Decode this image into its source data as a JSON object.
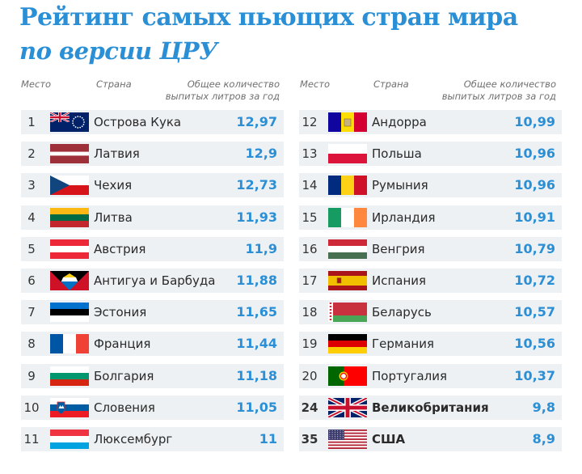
{
  "title": "Рейтинг самых пьющих стран мира",
  "subtitle": "по версии ЦРУ",
  "headers": {
    "rank": "Место",
    "country": "Страна",
    "liters_line1": "Общее количество",
    "liters_line2": "выпитых литров за год"
  },
  "left": [
    {
      "rank": "1",
      "country": "Острова Кука",
      "value": "12,97",
      "flag": "cook-islands"
    },
    {
      "rank": "2",
      "country": "Латвия",
      "value": "12,9",
      "flag": "latvia"
    },
    {
      "rank": "3",
      "country": "Чехия",
      "value": "12,73",
      "flag": "czechia"
    },
    {
      "rank": "4",
      "country": "Литва",
      "value": "11,93",
      "flag": "lithuania"
    },
    {
      "rank": "5",
      "country": "Австрия",
      "value": "11,9",
      "flag": "austria"
    },
    {
      "rank": "6",
      "country": "Антигуа и Барбуда",
      "value": "11,88",
      "flag": "antigua-and-barbuda"
    },
    {
      "rank": "7",
      "country": "Эстония",
      "value": "11,65",
      "flag": "estonia"
    },
    {
      "rank": "8",
      "country": "Франция",
      "value": "11,44",
      "flag": "france"
    },
    {
      "rank": "9",
      "country": "Болгария",
      "value": "11,18",
      "flag": "bulgaria"
    },
    {
      "rank": "10",
      "country": "Словения",
      "value": "11,05",
      "flag": "slovenia"
    },
    {
      "rank": "11",
      "country": "Люксембург",
      "value": "11",
      "flag": "luxembourg"
    }
  ],
  "right": [
    {
      "rank": "12",
      "country": "Андорра",
      "value": "10,99",
      "flag": "andorra"
    },
    {
      "rank": "13",
      "country": "Польша",
      "value": "10,96",
      "flag": "poland"
    },
    {
      "rank": "14",
      "country": "Румыния",
      "value": "10,96",
      "flag": "romania"
    },
    {
      "rank": "15",
      "country": "Ирландия",
      "value": "10,91",
      "flag": "ireland"
    },
    {
      "rank": "16",
      "country": "Венгрия",
      "value": "10,79",
      "flag": "hungary"
    },
    {
      "rank": "17",
      "country": "Испания",
      "value": "10,72",
      "flag": "spain"
    },
    {
      "rank": "18",
      "country": "Беларусь",
      "value": "10,57",
      "flag": "belarus"
    },
    {
      "rank": "19",
      "country": "Германия",
      "value": "10,56",
      "flag": "germany"
    },
    {
      "rank": "20",
      "country": "Португалия",
      "value": "10,37",
      "flag": "portugal"
    },
    {
      "rank": "24",
      "country": "Великобритания",
      "value": "9,8",
      "flag": "united-kingdom",
      "bold": true
    },
    {
      "rank": "35",
      "country": "США",
      "value": "8,9",
      "flag": "usa",
      "bold": true
    }
  ],
  "colors": {
    "accent": "#2b8fd6",
    "row_bg": "#eef1f4",
    "header_text": "#6f6f6f"
  }
}
